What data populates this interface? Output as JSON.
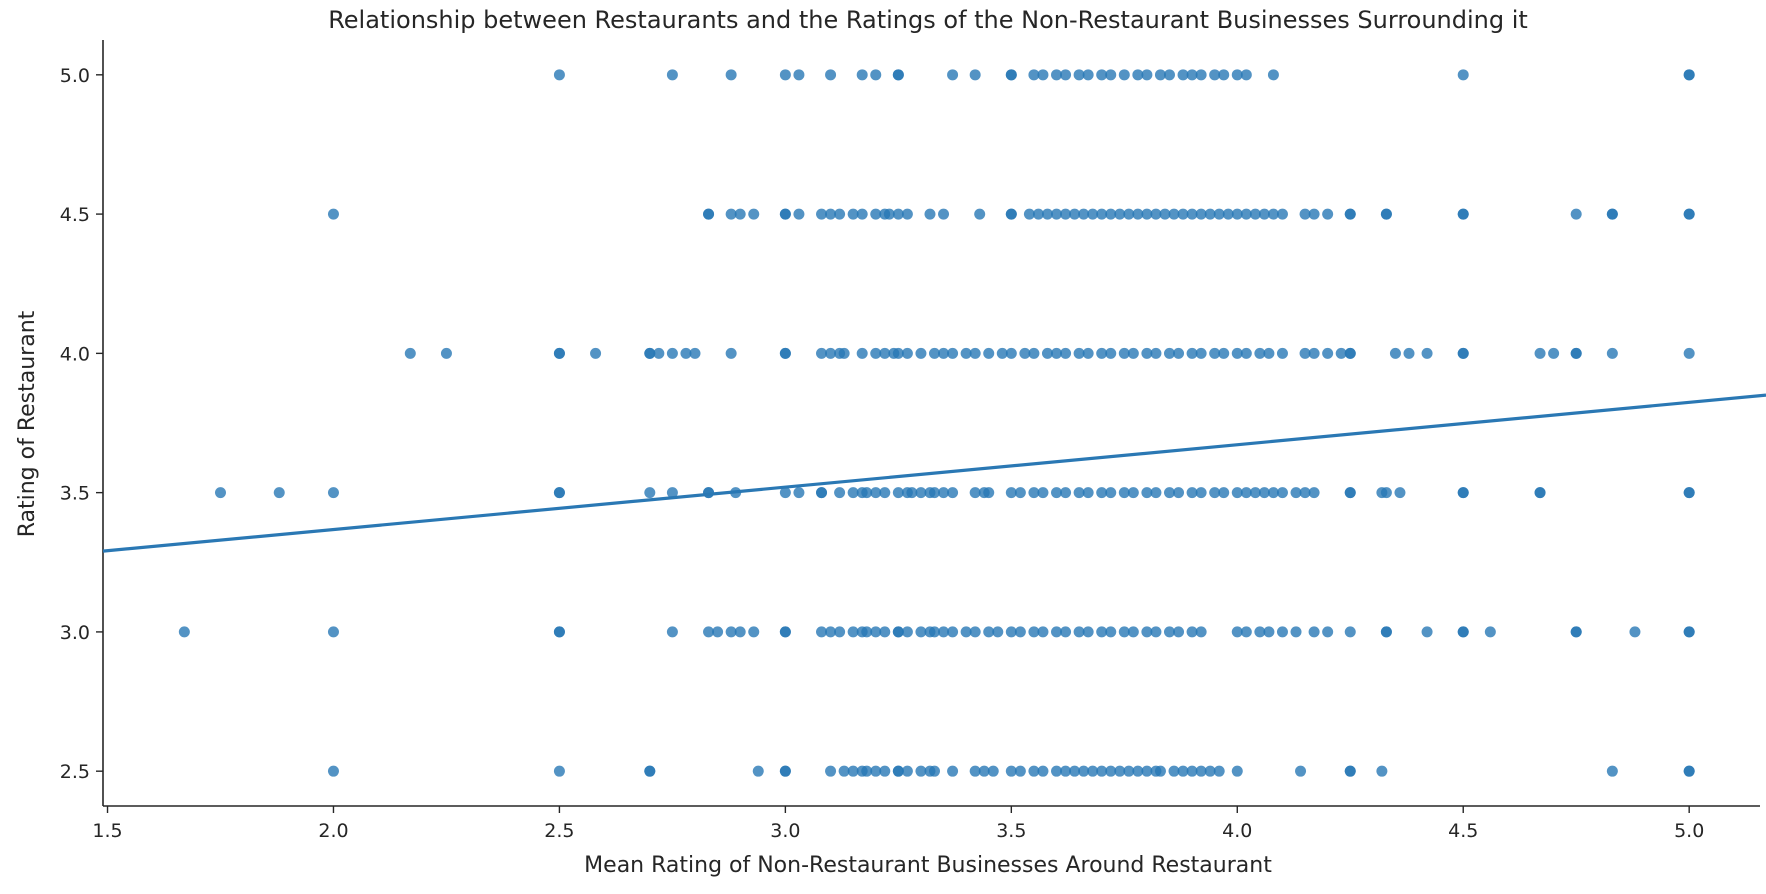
{
  "chart_data": {
    "type": "scatter",
    "title": "Relationship between Restaurants and the Ratings of the Non-Restaurant Businesses Surrounding it",
    "xlabel": "Mean Rating of Non-Restaurant Businesses Around Restaurant",
    "ylabel": "Rating of Restaurant",
    "xlim": [
      1.49,
      5.17
    ],
    "ylim": [
      2.375,
      5.125
    ],
    "x_ticks": [
      "1.5",
      "2.0",
      "2.5",
      "3.0",
      "3.5",
      "4.0",
      "4.5",
      "5.0"
    ],
    "y_ticks": [
      "2.5",
      "3.0",
      "3.5",
      "4.0",
      "4.5",
      "5.0"
    ],
    "grid": false,
    "color": "#2878b5",
    "regression_line": {
      "x": [
        1.49,
        5.17
      ],
      "y": [
        3.29,
        3.85
      ]
    },
    "series": [
      {
        "y": 5.0,
        "x": [
          2.5,
          2.75,
          2.88,
          3.0,
          3.03,
          3.1,
          3.17,
          3.2,
          3.25,
          3.25,
          3.37,
          3.42,
          3.5,
          3.5,
          3.55,
          3.57,
          3.6,
          3.62,
          3.65,
          3.67,
          3.7,
          3.72,
          3.75,
          3.78,
          3.8,
          3.83,
          3.85,
          3.88,
          3.9,
          3.92,
          3.95,
          3.97,
          4.0,
          4.02,
          4.08,
          4.5,
          5.0,
          5.0
        ]
      },
      {
        "y": 4.5,
        "x": [
          2.0,
          2.83,
          2.83,
          2.88,
          2.9,
          2.93,
          3.0,
          3.0,
          3.03,
          3.08,
          3.1,
          3.12,
          3.15,
          3.17,
          3.2,
          3.22,
          3.23,
          3.25,
          3.27,
          3.32,
          3.35,
          3.43,
          3.5,
          3.5,
          3.54,
          3.56,
          3.58,
          3.6,
          3.62,
          3.64,
          3.66,
          3.68,
          3.7,
          3.72,
          3.74,
          3.76,
          3.78,
          3.8,
          3.82,
          3.84,
          3.86,
          3.88,
          3.9,
          3.92,
          3.94,
          3.96,
          3.98,
          4.0,
          4.02,
          4.04,
          4.06,
          4.08,
          4.1,
          4.15,
          4.17,
          4.2,
          4.25,
          4.25,
          4.33,
          4.33,
          4.5,
          4.5,
          4.75,
          4.83,
          4.83,
          5.0,
          5.0
        ]
      },
      {
        "y": 4.0,
        "x": [
          2.17,
          2.25,
          2.5,
          2.5,
          2.58,
          2.7,
          2.7,
          2.72,
          2.75,
          2.78,
          2.8,
          2.88,
          3.0,
          3.0,
          3.08,
          3.1,
          3.12,
          3.13,
          3.17,
          3.2,
          3.22,
          3.24,
          3.25,
          3.27,
          3.3,
          3.33,
          3.35,
          3.37,
          3.4,
          3.42,
          3.45,
          3.48,
          3.5,
          3.53,
          3.55,
          3.58,
          3.6,
          3.62,
          3.65,
          3.67,
          3.7,
          3.72,
          3.75,
          3.77,
          3.8,
          3.82,
          3.85,
          3.87,
          3.9,
          3.92,
          3.95,
          3.97,
          4.0,
          4.02,
          4.05,
          4.07,
          4.1,
          4.15,
          4.17,
          4.2,
          4.23,
          4.25,
          4.25,
          4.35,
          4.38,
          4.42,
          4.5,
          4.5,
          4.67,
          4.7,
          4.75,
          4.75,
          4.83,
          5.0
        ]
      },
      {
        "y": 3.5,
        "x": [
          1.75,
          1.88,
          2.0,
          2.5,
          2.5,
          2.7,
          2.75,
          2.83,
          2.83,
          2.89,
          3.0,
          3.03,
          3.08,
          3.08,
          3.12,
          3.15,
          3.17,
          3.18,
          3.2,
          3.22,
          3.25,
          3.27,
          3.28,
          3.3,
          3.32,
          3.33,
          3.35,
          3.37,
          3.42,
          3.44,
          3.45,
          3.5,
          3.52,
          3.55,
          3.57,
          3.6,
          3.62,
          3.65,
          3.67,
          3.7,
          3.72,
          3.75,
          3.77,
          3.8,
          3.82,
          3.85,
          3.87,
          3.9,
          3.92,
          3.95,
          3.97,
          4.0,
          4.02,
          4.04,
          4.06,
          4.08,
          4.1,
          4.13,
          4.15,
          4.17,
          4.25,
          4.25,
          4.32,
          4.33,
          4.36,
          4.5,
          4.5,
          4.67,
          4.67,
          5.0,
          5.0
        ]
      },
      {
        "y": 3.0,
        "x": [
          1.67,
          2.0,
          2.5,
          2.5,
          2.75,
          2.83,
          2.85,
          2.88,
          2.9,
          2.93,
          3.0,
          3.0,
          3.08,
          3.1,
          3.12,
          3.15,
          3.17,
          3.18,
          3.2,
          3.22,
          3.25,
          3.25,
          3.27,
          3.3,
          3.32,
          3.33,
          3.35,
          3.37,
          3.4,
          3.42,
          3.45,
          3.47,
          3.5,
          3.52,
          3.55,
          3.57,
          3.6,
          3.62,
          3.65,
          3.67,
          3.7,
          3.72,
          3.75,
          3.77,
          3.8,
          3.82,
          3.85,
          3.87,
          3.9,
          3.92,
          4.0,
          4.02,
          4.05,
          4.07,
          4.1,
          4.13,
          4.17,
          4.2,
          4.25,
          4.33,
          4.33,
          4.42,
          4.5,
          4.5,
          4.56,
          4.75,
          4.75,
          4.88,
          5.0,
          5.0
        ]
      },
      {
        "y": 2.5,
        "x": [
          2.0,
          2.5,
          2.7,
          2.7,
          2.94,
          3.0,
          3.0,
          3.1,
          3.13,
          3.15,
          3.17,
          3.18,
          3.2,
          3.22,
          3.25,
          3.25,
          3.27,
          3.3,
          3.32,
          3.33,
          3.37,
          3.42,
          3.44,
          3.46,
          3.5,
          3.52,
          3.55,
          3.57,
          3.6,
          3.62,
          3.64,
          3.66,
          3.68,
          3.7,
          3.72,
          3.74,
          3.76,
          3.78,
          3.8,
          3.82,
          3.83,
          3.86,
          3.88,
          3.9,
          3.92,
          3.94,
          3.96,
          4.0,
          4.14,
          4.25,
          4.25,
          4.32,
          4.83,
          5.0,
          5.0
        ]
      }
    ]
  }
}
